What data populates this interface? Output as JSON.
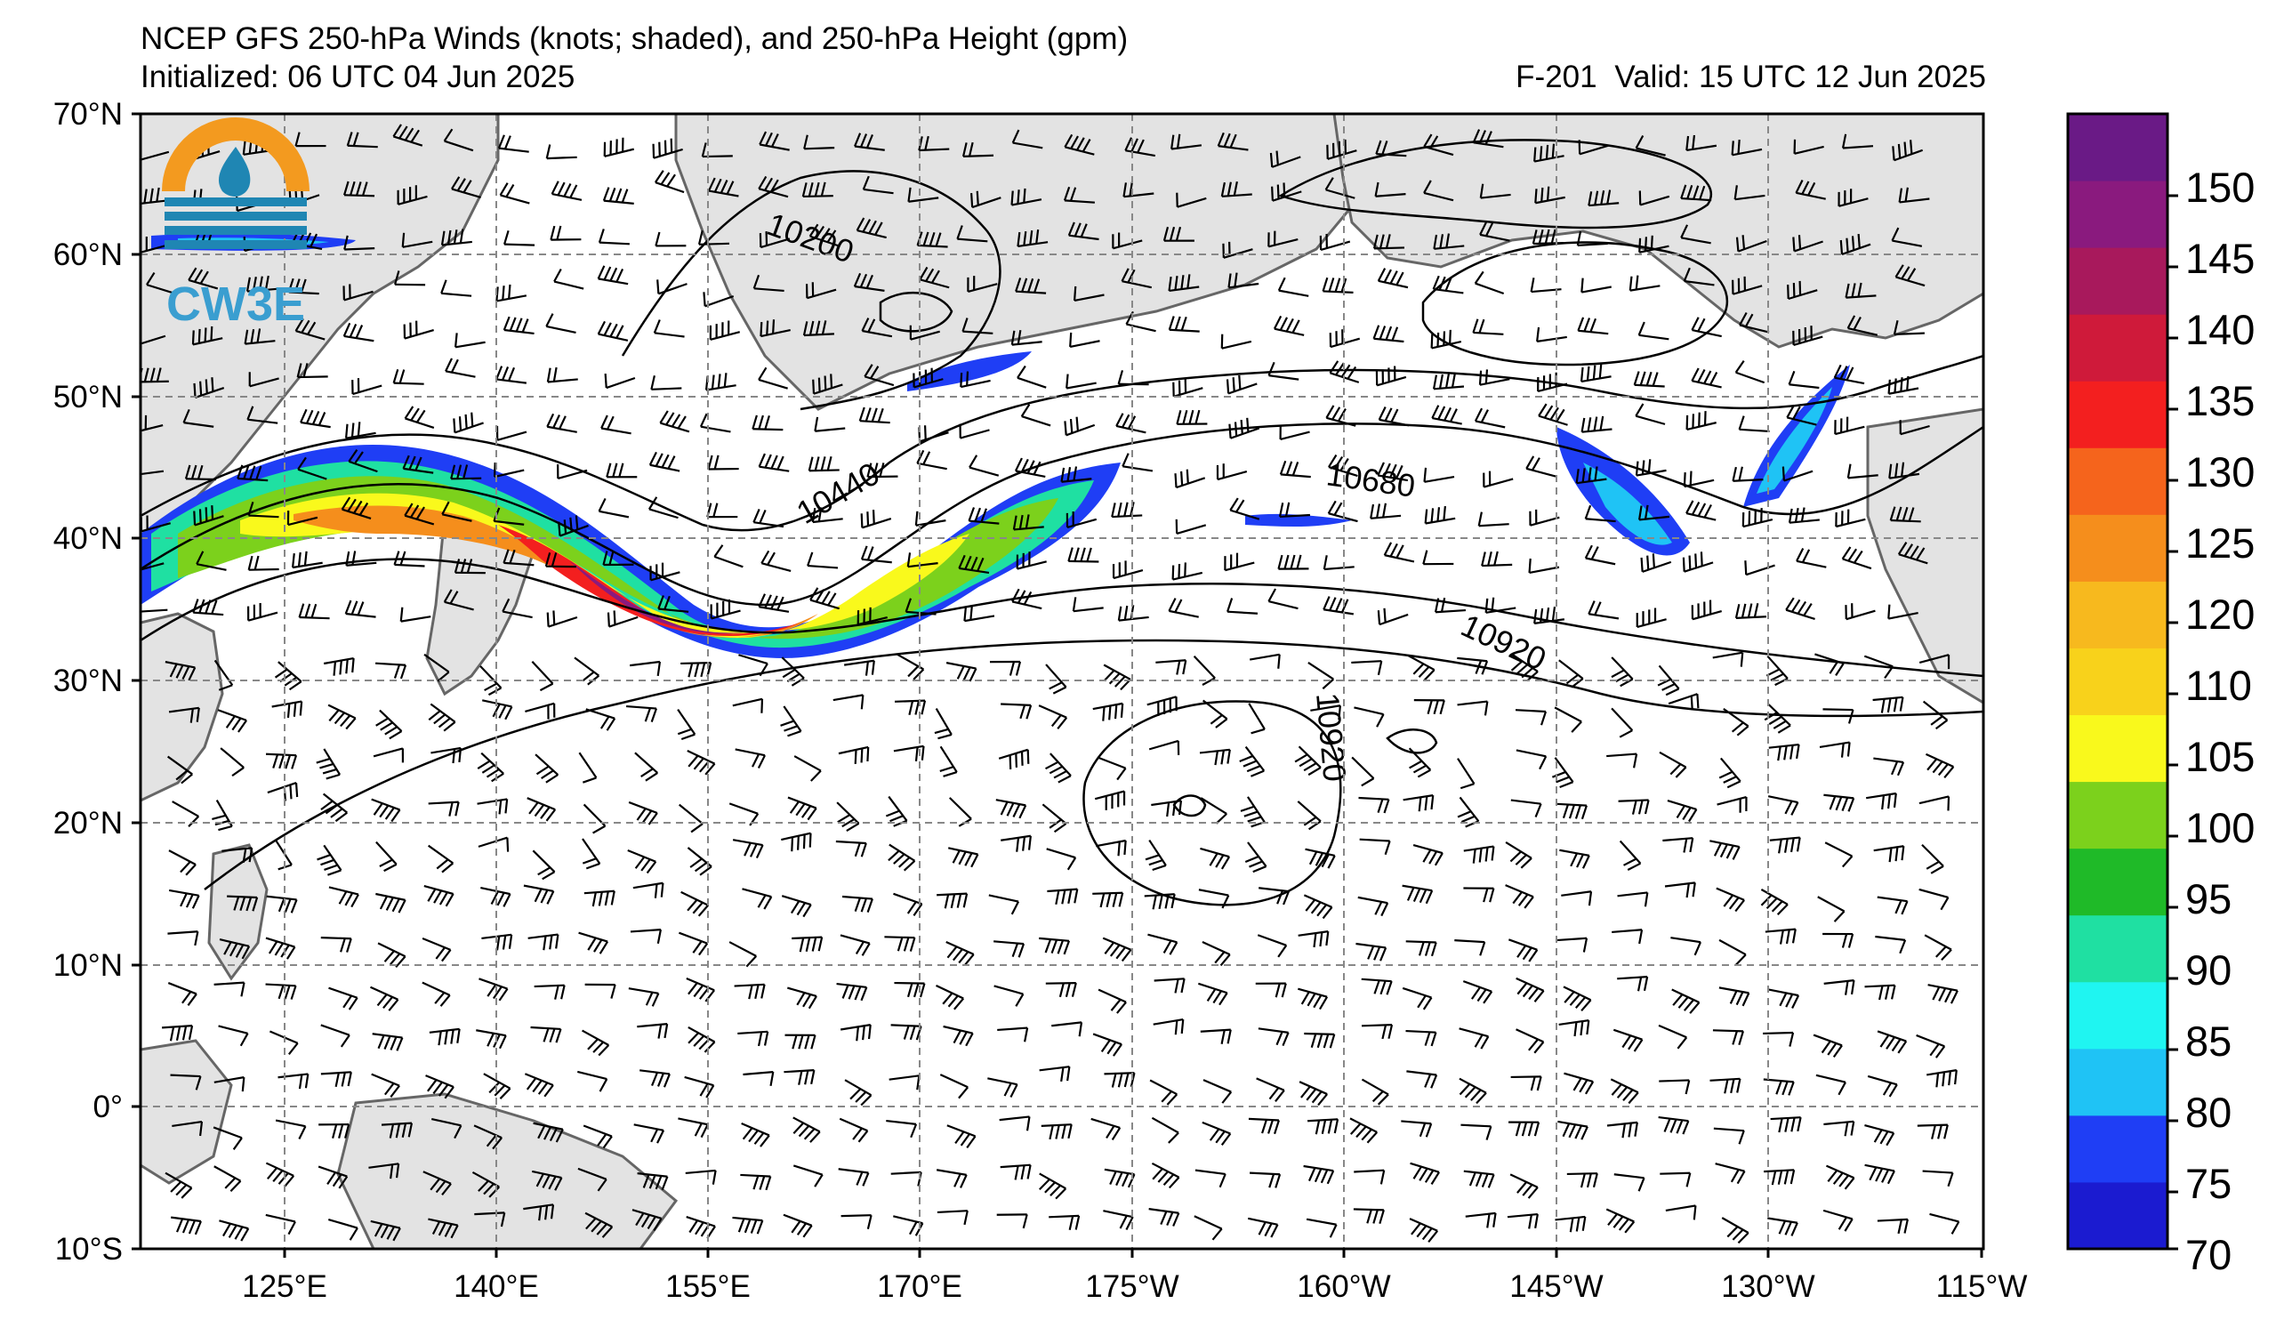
{
  "header": {
    "title": "NCEP GFS 250-hPa Winds (knots; shaded), and 250-hPa Height (gpm)",
    "initialized": "Initialized: 06 UTC 04 Jun 2025",
    "forecast_hour": "F-201",
    "valid": "Valid: 15 UTC 12 Jun 2025"
  },
  "logo": {
    "text": "CW3E",
    "icon": "water-drop-sun-icon"
  },
  "map": {
    "lon_labels": [
      "125°E",
      "140°E",
      "155°E",
      "170°E",
      "175°W",
      "160°W",
      "145°W",
      "130°W",
      "115°W"
    ],
    "lat_labels": [
      "70°N",
      "60°N",
      "50°N",
      "40°N",
      "30°N",
      "20°N",
      "10°N",
      "0°",
      "10°S"
    ],
    "contour_labels": [
      "10200",
      "10440",
      "10680",
      "10920",
      "10920"
    ]
  },
  "colorbar": {
    "labels": [
      "150",
      "145",
      "140",
      "135",
      "130",
      "125",
      "120",
      "110",
      "105",
      "100",
      "95",
      "90",
      "85",
      "80",
      "75",
      "70"
    ],
    "colors": [
      "#6a1a86",
      "#8a1a7e",
      "#a8195c",
      "#cf1a3a",
      "#f31f1f",
      "#f5641c",
      "#f58e1c",
      "#f7b91e",
      "#f8d21b",
      "#f9f91c",
      "#7cd11c",
      "#1fba28",
      "#1fe0a2",
      "#1ff5f1",
      "#1fc3f5",
      "#1f3ef5",
      "#1b1bd0"
    ]
  }
}
